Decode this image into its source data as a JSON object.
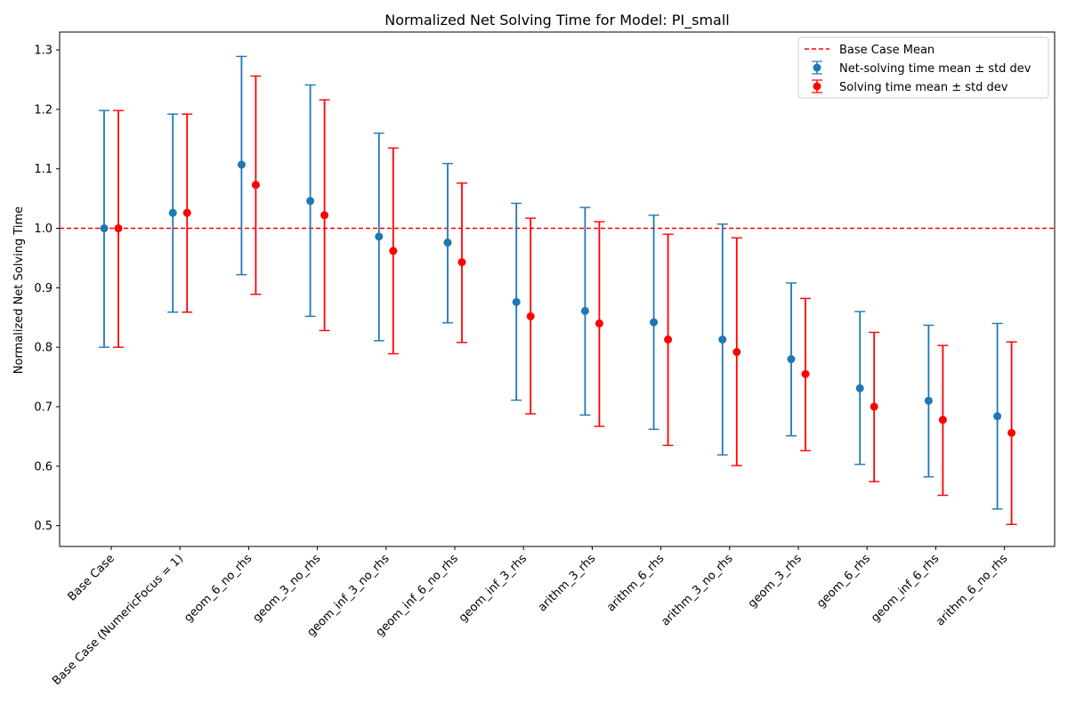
{
  "chart_data": {
    "type": "scatter",
    "title": "Normalized Net Solving Time for Model: PI_small",
    "xlabel": "",
    "ylabel": "Normalized Net Solving Time",
    "ylim": [
      0.465,
      1.33
    ],
    "yticks": [
      "0.5",
      "0.6",
      "0.7",
      "0.8",
      "0.9",
      "1.0",
      "1.1",
      "1.2",
      "1.3"
    ],
    "categories": [
      "Base Case",
      "Base Case (NumericFocus = 1)",
      "geom_6_no_rhs",
      "geom_3_no_rhs",
      "geom_inf_3_no_rhs",
      "geom_inf_6_no_rhs",
      "geom_inf_3_rhs",
      "arithm_3_rhs",
      "arithm_6_rhs",
      "arithm_3_no_rhs",
      "geom_3_rhs",
      "geom_6_rhs",
      "geom_inf_6_rhs",
      "arithm_6_no_rhs"
    ],
    "base_case_mean": 1.0,
    "legend_position": "top-right",
    "grid": false,
    "series": [
      {
        "name": "Net-solving time mean ± std dev",
        "color": "#1f77b4",
        "values": [
          1.0,
          1.026,
          1.107,
          1.046,
          0.986,
          0.976,
          0.876,
          0.861,
          0.842,
          0.813,
          0.78,
          0.731,
          0.71,
          0.684
        ],
        "lower": [
          0.8,
          0.859,
          0.922,
          0.852,
          0.811,
          0.841,
          0.711,
          0.686,
          0.662,
          0.619,
          0.651,
          0.603,
          0.582,
          0.528
        ],
        "upper": [
          1.198,
          1.192,
          1.289,
          1.241,
          1.16,
          1.109,
          1.042,
          1.035,
          1.022,
          1.007,
          0.908,
          0.86,
          0.837,
          0.84
        ]
      },
      {
        "name": "Solving time mean ± std dev",
        "color": "#ff0000",
        "values": [
          1.0,
          1.026,
          1.073,
          1.022,
          0.962,
          0.943,
          0.852,
          0.84,
          0.813,
          0.792,
          0.755,
          0.7,
          0.678,
          0.656
        ],
        "lower": [
          0.8,
          0.859,
          0.889,
          0.828,
          0.789,
          0.808,
          0.688,
          0.667,
          0.635,
          0.601,
          0.626,
          0.574,
          0.551,
          0.502
        ],
        "upper": [
          1.198,
          1.192,
          1.256,
          1.216,
          1.135,
          1.076,
          1.017,
          1.011,
          0.99,
          0.984,
          0.882,
          0.825,
          0.803,
          0.809
        ]
      }
    ],
    "legend": {
      "mean_line_label": "Base Case Mean",
      "mean_line_color": "#ff0000"
    }
  }
}
